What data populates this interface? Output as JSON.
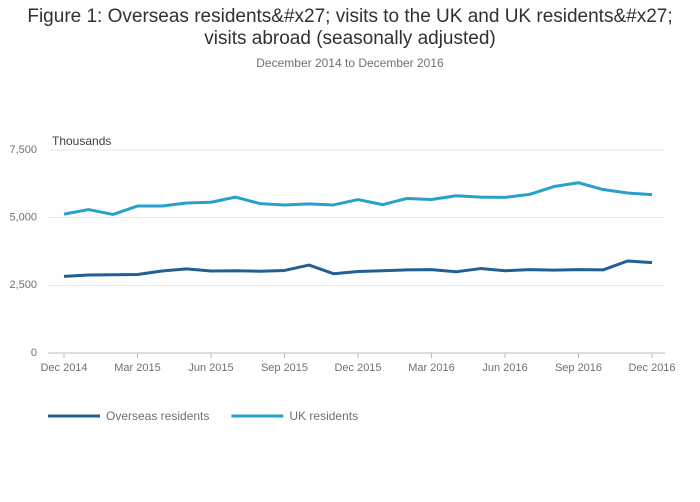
{
  "chart_data": {
    "type": "line",
    "title": "Figure 1: Overseas residents&#x27; visits to the UK and UK residents&#x27; visits abroad (seasonally adjusted)",
    "subtitle": "December 2014 to December 2016",
    "y_axis_label": "Thousands",
    "categories": [
      "Dec 2014",
      null,
      null,
      "Mar 2015",
      null,
      null,
      "Jun 2015",
      null,
      null,
      "Sep 2015",
      null,
      null,
      "Dec 2015",
      null,
      null,
      "Mar 2016",
      null,
      null,
      "Jun 2016",
      null,
      null,
      "Sep 2016",
      null,
      null,
      "Dec 2016"
    ],
    "series": [
      {
        "name": "Overseas residents",
        "color": "#206095",
        "values": [
          2830,
          2880,
          2890,
          2900,
          3030,
          3110,
          3030,
          3040,
          3020,
          3050,
          3250,
          2930,
          3010,
          3040,
          3070,
          3080,
          3000,
          3120,
          3040,
          3080,
          3060,
          3080,
          3070,
          3400,
          3340
        ]
      },
      {
        "name": "UK residents",
        "color": "#27a0cc",
        "values": [
          5130,
          5300,
          5120,
          5430,
          5430,
          5540,
          5570,
          5760,
          5520,
          5470,
          5510,
          5470,
          5670,
          5480,
          5710,
          5670,
          5810,
          5760,
          5750,
          5860,
          6150,
          6290,
          6040,
          5910,
          5850
        ]
      }
    ],
    "ylim": [
      0,
      7500
    ],
    "yticks": [
      0,
      {
        "value": 2500,
        "label": "2,500"
      },
      {
        "value": 5000,
        "label": "5,000"
      },
      {
        "value": 7500,
        "label": "7,500"
      }
    ],
    "grid": true,
    "legend": "bottom-left"
  }
}
